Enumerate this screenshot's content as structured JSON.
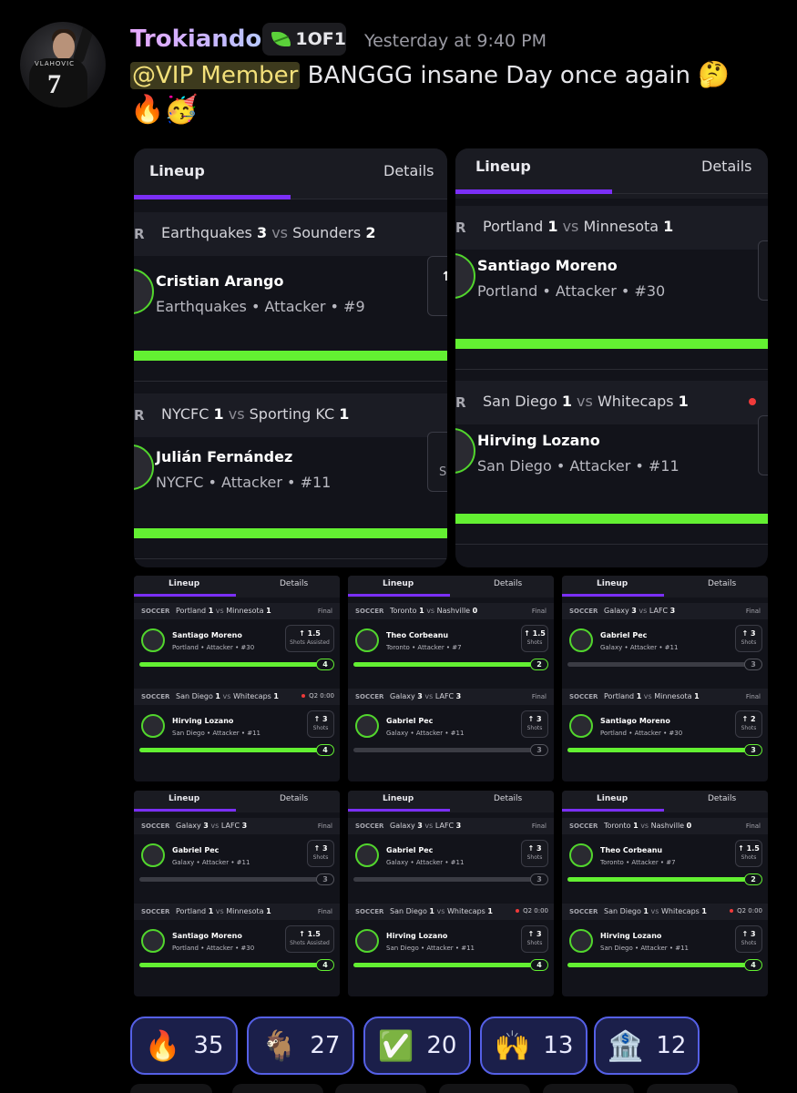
{
  "message": {
    "username": "Trokiando",
    "tag": "1OF1",
    "timestamp": "Yesterday at 9:40 PM",
    "mention": "@VIP Member",
    "text": "BANGGG insane Day once again",
    "emoji_inline": "🤔",
    "emoji_line2": "🔥🥳",
    "avatar_jersey_name": "VLAHOVIC",
    "avatar_jersey_number": "7"
  },
  "tabs": {
    "lineup": "Lineup",
    "details": "Details"
  },
  "labels": {
    "sport": "SOCCER",
    "sport_cut": "R",
    "final": "Final",
    "live": "Q2 0:00",
    "vs": "vs"
  },
  "big_cards": [
    {
      "sections": [
        {
          "team_a": "Earthquakes",
          "score_a": "3",
          "team_b": "Sounders",
          "score_b": "2",
          "player": "Cristian Arango",
          "info": "Earthquakes • Attacker • #9"
        },
        {
          "team_a": "NYCFC",
          "score_a": "1",
          "team_b": "Sporting KC",
          "score_b": "1",
          "player": "Julián Fernández",
          "info": "NYCFC • Attacker • #11",
          "stat_partial": "Shots A"
        }
      ]
    },
    {
      "sections": [
        {
          "team_a": "Portland",
          "score_a": "1",
          "team_b": "Minnesota",
          "score_b": "1",
          "player": "Santiago Moreno",
          "info": "Portland • Attacker • #30"
        },
        {
          "team_a": "San Diego",
          "score_a": "1",
          "team_b": "Whitecaps",
          "score_b": "1",
          "player": "Hirving Lozano",
          "info": "San Diego • Attacker • #11"
        }
      ]
    }
  ],
  "small_cards": [
    {
      "sections": [
        {
          "team_a": "Portland",
          "score_a": "1",
          "team_b": "Minnesota",
          "score_b": "1",
          "status": "Final",
          "player": "Santiago Moreno",
          "info": "Portland • Attacker • #30",
          "line": "1.5",
          "stat": "Shots Assisted",
          "result": "4",
          "progress": 1
        },
        {
          "team_a": "San Diego",
          "score_a": "1",
          "team_b": "Whitecaps",
          "score_b": "1",
          "status": "Q2 0:00",
          "player": "Hirving Lozano",
          "info": "San Diego • Attacker • #11",
          "line": "3",
          "stat": "Shots",
          "result": "4",
          "progress": 1
        }
      ]
    },
    {
      "sections": [
        {
          "team_a": "Toronto",
          "score_a": "1",
          "team_b": "Nashville",
          "score_b": "0",
          "status": "Final",
          "player": "Theo Corbeanu",
          "info": "Toronto • Attacker • #7",
          "line": "1.5",
          "stat": "Shots",
          "result": "2",
          "progress": 1
        },
        {
          "team_a": "Galaxy",
          "score_a": "3",
          "team_b": "LAFC",
          "score_b": "3",
          "status": "Final",
          "player": "Gabriel Pec",
          "info": "Galaxy • Attacker • #11",
          "line": "3",
          "stat": "Shots",
          "result": "3",
          "progress": 0
        }
      ]
    },
    {
      "sections": [
        {
          "team_a": "Galaxy",
          "score_a": "3",
          "team_b": "LAFC",
          "score_b": "3",
          "status": "Final",
          "player": "Gabriel Pec",
          "info": "Galaxy • Attacker • #11",
          "line": "3",
          "stat": "Shots",
          "result": "3",
          "progress": 0
        },
        {
          "team_a": "Portland",
          "score_a": "1",
          "team_b": "Minnesota",
          "score_b": "1",
          "status": "Final",
          "player": "Santiago Moreno",
          "info": "Portland • Attacker • #30",
          "line": "2",
          "stat": "Shots",
          "result": "3",
          "progress": 1
        }
      ]
    },
    {
      "sections": [
        {
          "team_a": "Galaxy",
          "score_a": "3",
          "team_b": "LAFC",
          "score_b": "3",
          "status": "Final",
          "player": "Gabriel Pec",
          "info": "Galaxy • Attacker • #11",
          "line": "3",
          "stat": "Shots",
          "result": "3",
          "progress": 0
        },
        {
          "team_a": "Portland",
          "score_a": "1",
          "team_b": "Minnesota",
          "score_b": "1",
          "status": "Final",
          "player": "Santiago Moreno",
          "info": "Portland • Attacker • #30",
          "line": "1.5",
          "stat": "Shots Assisted",
          "result": "4",
          "progress": 1
        }
      ]
    },
    {
      "sections": [
        {
          "team_a": "Galaxy",
          "score_a": "3",
          "team_b": "LAFC",
          "score_b": "3",
          "status": "Final",
          "player": "Gabriel Pec",
          "info": "Galaxy • Attacker • #11",
          "line": "3",
          "stat": "Shots",
          "result": "3",
          "progress": 0
        },
        {
          "team_a": "San Diego",
          "score_a": "1",
          "team_b": "Whitecaps",
          "score_b": "1",
          "status": "Q2 0:00",
          "player": "Hirving Lozano",
          "info": "San Diego • Attacker • #11",
          "line": "3",
          "stat": "Shots",
          "result": "4",
          "progress": 1
        }
      ]
    },
    {
      "sections": [
        {
          "team_a": "Toronto",
          "score_a": "1",
          "team_b": "Nashville",
          "score_b": "0",
          "status": "Final",
          "player": "Theo Corbeanu",
          "info": "Toronto • Attacker • #7",
          "line": "1.5",
          "stat": "Shots",
          "result": "2",
          "progress": 1
        },
        {
          "team_a": "San Diego",
          "score_a": "1",
          "team_b": "Whitecaps",
          "score_b": "1",
          "status": "Q2 0:00",
          "player": "Hirving Lozano",
          "info": "San Diego • Attacker • #11",
          "line": "3",
          "stat": "Shots",
          "result": "4",
          "progress": 1
        }
      ]
    }
  ],
  "reactions": [
    {
      "emoji": "🔥",
      "count": "35",
      "icon": "fire-icon"
    },
    {
      "emoji": "🐐",
      "count": "27",
      "icon": "goat-icon"
    },
    {
      "emoji": "✅",
      "count": "20",
      "icon": "check-icon"
    },
    {
      "emoji": "🙌",
      "count": "13",
      "icon": "raised-hands-icon"
    },
    {
      "emoji": "🏦",
      "count": "12",
      "icon": "bank-icon"
    }
  ],
  "colors": {
    "accent_purple": "#7b2ff7",
    "progress_green": "#63f032",
    "card_bg": "#12131a",
    "reaction_border": "#5560e6",
    "live_red": "#f03a3a"
  }
}
